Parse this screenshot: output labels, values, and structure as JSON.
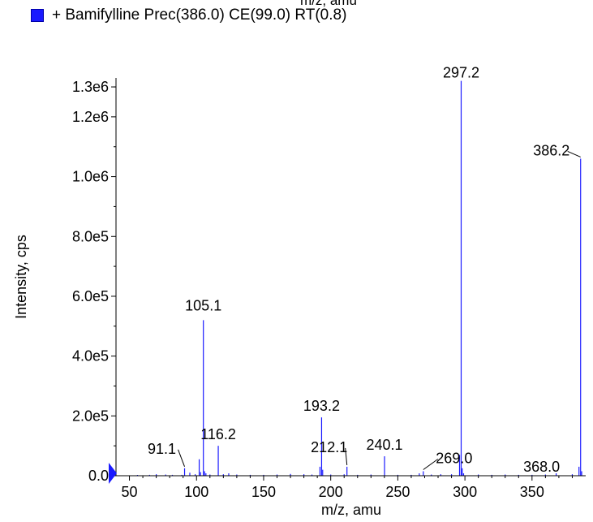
{
  "header": {
    "cut_off_axis_label": "m/z, amu"
  },
  "legend": {
    "text": "+ Bamifylline Prec(386.0) CE(99.0) RT(0.8)",
    "color": "#1a1aff"
  },
  "chart_data": {
    "type": "bar",
    "series": [
      {
        "name": "+ Bamifylline Prec(386.0) CE(99.0) RT(0.8)",
        "color": "#1a1aff",
        "peaks": [
          {
            "x": 56.0,
            "y": 2000
          },
          {
            "x": 65.0,
            "y": 3000
          },
          {
            "x": 70.0,
            "y": 5000
          },
          {
            "x": 77.0,
            "y": 4000
          },
          {
            "x": 82.0,
            "y": 3000
          },
          {
            "x": 89.0,
            "y": 3000
          },
          {
            "x": 91.1,
            "y": 25000,
            "label": "91.1"
          },
          {
            "x": 95.0,
            "y": 10000
          },
          {
            "x": 99.0,
            "y": 5000
          },
          {
            "x": 102.0,
            "y": 55000
          },
          {
            "x": 103.0,
            "y": 12000
          },
          {
            "x": 105.1,
            "y": 520000,
            "label": "105.1"
          },
          {
            "x": 106.0,
            "y": 15000
          },
          {
            "x": 107.0,
            "y": 8000
          },
          {
            "x": 110.0,
            "y": 4000
          },
          {
            "x": 116.2,
            "y": 100000,
            "label": "116.2"
          },
          {
            "x": 120.0,
            "y": 5000
          },
          {
            "x": 124.0,
            "y": 8000
          },
          {
            "x": 130.0,
            "y": 4000
          },
          {
            "x": 140.0,
            "y": 3000
          },
          {
            "x": 150.0,
            "y": 3000
          },
          {
            "x": 160.0,
            "y": 4000
          },
          {
            "x": 170.0,
            "y": 6000
          },
          {
            "x": 180.0,
            "y": 5000
          },
          {
            "x": 186.0,
            "y": 4000
          },
          {
            "x": 192.0,
            "y": 30000
          },
          {
            "x": 193.2,
            "y": 195000,
            "label": "193.2"
          },
          {
            "x": 194.0,
            "y": 20000
          },
          {
            "x": 200.0,
            "y": 4000
          },
          {
            "x": 210.0,
            "y": 5000
          },
          {
            "x": 212.1,
            "y": 30000,
            "label": "212.1"
          },
          {
            "x": 220.0,
            "y": 3000
          },
          {
            "x": 230.0,
            "y": 4000
          },
          {
            "x": 240.1,
            "y": 65000,
            "label": "240.1"
          },
          {
            "x": 250.0,
            "y": 3000
          },
          {
            "x": 260.0,
            "y": 3000
          },
          {
            "x": 266.0,
            "y": 8000
          },
          {
            "x": 269.0,
            "y": 15000,
            "label": "269.0"
          },
          {
            "x": 275.0,
            "y": 4000
          },
          {
            "x": 282.0,
            "y": 5000
          },
          {
            "x": 290.0,
            "y": 5000
          },
          {
            "x": 296.0,
            "y": 70000
          },
          {
            "x": 297.2,
            "y": 1320000,
            "label": "297.2"
          },
          {
            "x": 298.0,
            "y": 25000
          },
          {
            "x": 299.0,
            "y": 8000
          },
          {
            "x": 310.0,
            "y": 4000
          },
          {
            "x": 320.0,
            "y": 3000
          },
          {
            "x": 330.0,
            "y": 4000
          },
          {
            "x": 340.0,
            "y": 3000
          },
          {
            "x": 350.0,
            "y": 3000
          },
          {
            "x": 360.0,
            "y": 4000
          },
          {
            "x": 368.0,
            "y": 8000,
            "label": "368.0"
          },
          {
            "x": 380.0,
            "y": 5000
          },
          {
            "x": 385.0,
            "y": 30000
          },
          {
            "x": 386.2,
            "y": 1060000,
            "label": "386.2"
          },
          {
            "x": 387.0,
            "y": 15000
          }
        ]
      }
    ],
    "xlabel": "m/z, amu",
    "ylabel": "Intensity, cps",
    "xlim": [
      40,
      390
    ],
    "ylim": [
      0,
      1330000
    ],
    "x_ticks": [
      {
        "value": 50,
        "label": "50"
      },
      {
        "value": 100,
        "label": "100"
      },
      {
        "value": 150,
        "label": "150"
      },
      {
        "value": 200,
        "label": "200"
      },
      {
        "value": 250,
        "label": "250"
      },
      {
        "value": 300,
        "label": "300"
      },
      {
        "value": 350,
        "label": "350"
      }
    ],
    "y_ticks": [
      {
        "value": 0,
        "label": "0.0"
      },
      {
        "value": 200000,
        "label": "2.0e5"
      },
      {
        "value": 400000,
        "label": "4.0e5"
      },
      {
        "value": 600000,
        "label": "6.0e5"
      },
      {
        "value": 800000,
        "label": "8.0e5"
      },
      {
        "value": 1000000,
        "label": "1.0e6"
      },
      {
        "value": 1200000,
        "label": "1.2e6"
      },
      {
        "value": 1300000,
        "label": "1.3e6"
      }
    ],
    "grid": false,
    "legend_position": "top-left"
  }
}
